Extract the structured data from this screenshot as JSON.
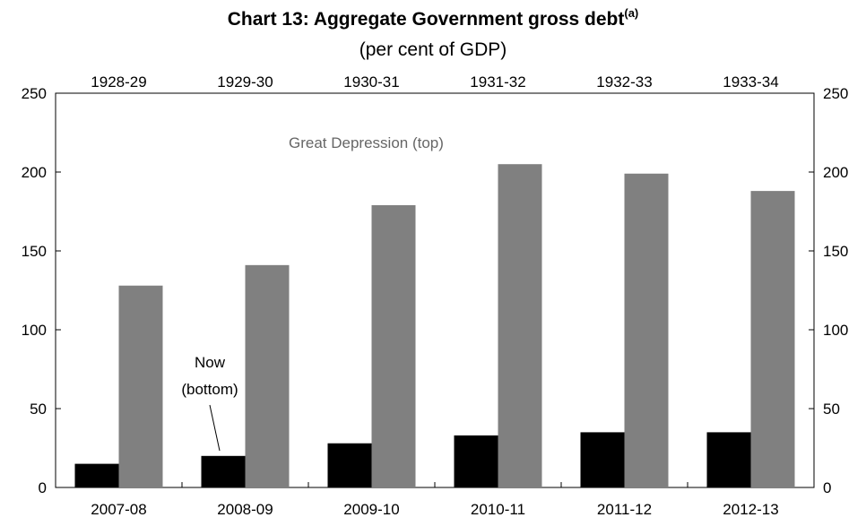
{
  "chart_data": {
    "type": "bar",
    "title": "Chart 13: Aggregate Government gross debt",
    "title_superscript": "(a)",
    "subtitle": "(per cent of GDP)",
    "categories": [
      "2007-08",
      "2008-09",
      "2009-10",
      "2010-11",
      "2011-12",
      "2012-13"
    ],
    "top_categories": [
      "1928-29",
      "1929-30",
      "1930-31",
      "1931-32",
      "1932-33",
      "1933-34"
    ],
    "series": [
      {
        "name": "Now",
        "color": "#000000",
        "values": [
          15,
          20,
          28,
          33,
          35,
          35
        ]
      },
      {
        "name": "Great Depression",
        "color": "#808080",
        "values": [
          128,
          141,
          179,
          205,
          199,
          188
        ]
      }
    ],
    "ylim": [
      0,
      250
    ],
    "yticks": [
      0,
      50,
      100,
      150,
      200,
      250
    ],
    "grid": false,
    "annotations": {
      "great_depression": "Great Depression (top)",
      "now_line1": "Now",
      "now_line2": "(bottom)"
    }
  }
}
